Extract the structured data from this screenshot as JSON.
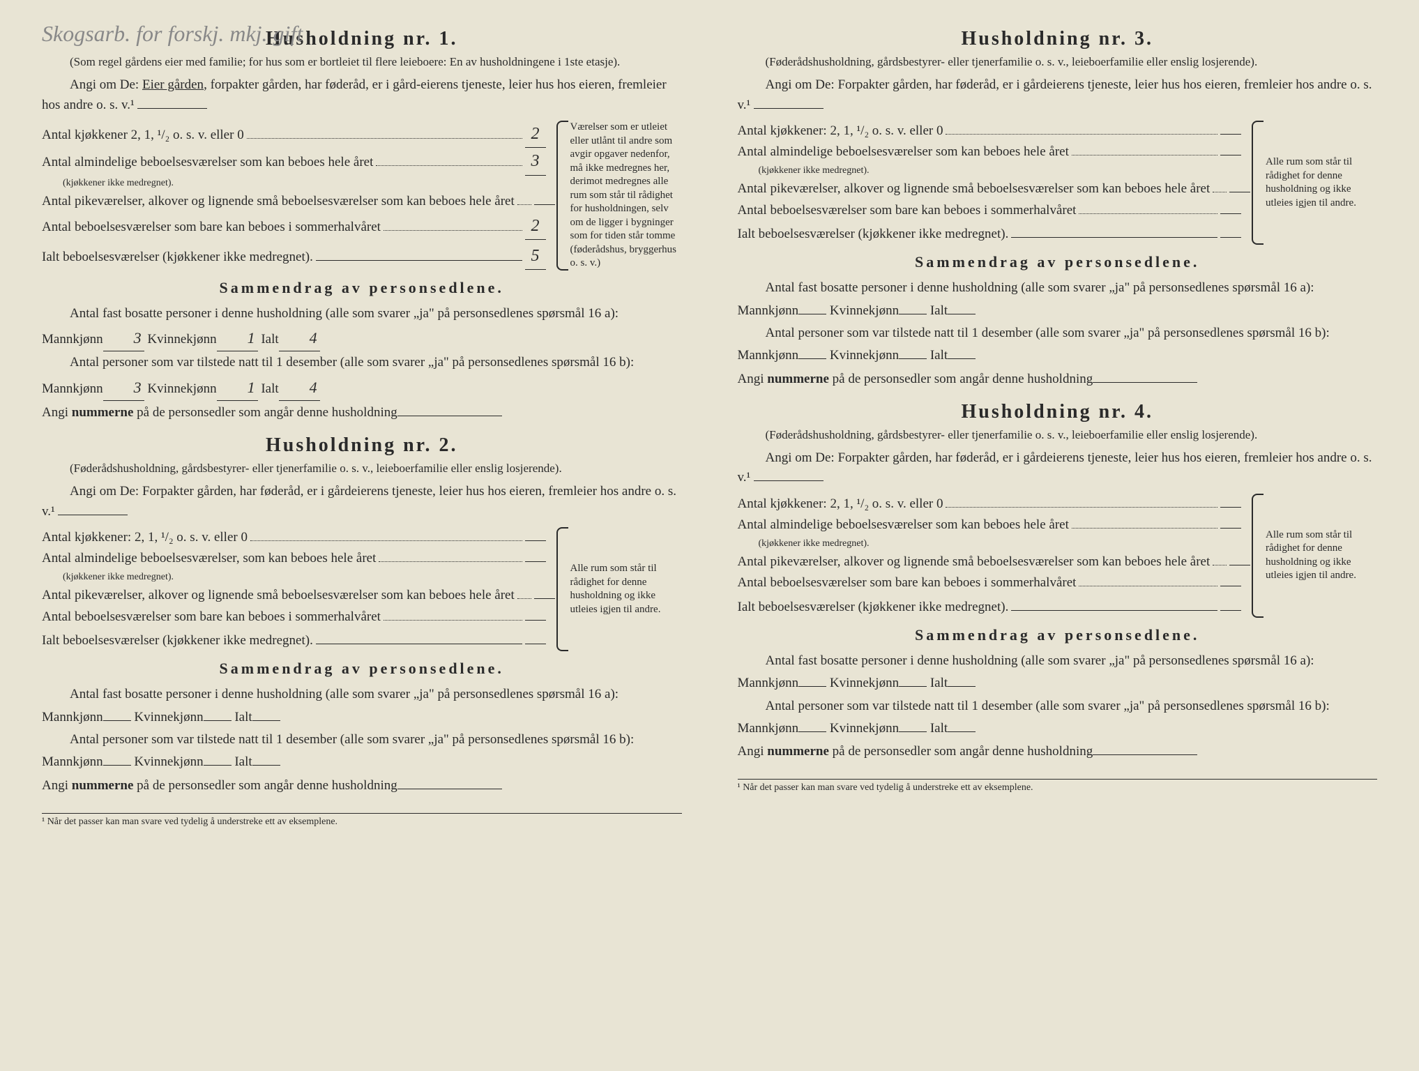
{
  "handwriting_note": "Skogsarb. for forskj. mkj. gift",
  "footnote": "¹ Når det passer kan man svare ved tydelig å understreke ett av eksemplene.",
  "households": [
    {
      "title": "Husholdning nr. 1.",
      "subtitle": "(Som regel gårdens eier med familie; for hus som er bortleiet til flere leieboere: En av husholdningene i 1ste etasje).",
      "instruction_prefix": "Angi om De: ",
      "instruction_underlined": "Eier gården",
      "instruction_suffix": ", forpakter gården, har føderåd, er i gård-eierens tjeneste, leier hus hos eieren, fremleier hos andre o. s. v.¹",
      "kitchens_label": "Antal kjøkkener 2, 1, ¹/₂ o. s. v. eller 0",
      "kitchens_value": "2",
      "rooms_year_label": "Antal almindelige beboelsesværelser som kan beboes hele året",
      "rooms_year_note": "(kjøkkener ikke medregnet).",
      "rooms_year_value": "3",
      "alcoves_label": "Antal pikeværelser, alkover og lignende små beboelsesværelser som kan beboes hele året",
      "alcoves_value": "",
      "summer_label": "Antal beboelsesværelser som bare kan beboes i sommerhalvåret",
      "summer_value": "2",
      "total_label": "Ialt beboelsesværelser (kjøkkener ikke medregnet).",
      "total_value": "5",
      "bracket_note": "Værelser som er utleiet eller utlånt til andre som avgir opgaver nedenfor, må ikke medregnes her, derimot medregnes alle rum som står til rådighet for husholdningen, selv om de ligger i bygninger som for tiden står tomme (føderådshus, bryggerhus o. s. v.)",
      "summary_title": "Sammendrag av personsedlene.",
      "fast_label": "Antal fast bosatte personer i denne husholdning (alle som svarer „ja\" på personsedlenes spørsmål 16 a): Mannkjønn",
      "fast_m": "3",
      "fast_k_label": "Kvinnekjønn",
      "fast_k": "1",
      "fast_i_label": "Ialt",
      "fast_i": "4",
      "tilstede_label": "Antal personer som var tilstede natt til 1 desember (alle som svarer „ja\" på personsedlenes spørsmål 16 b): Mannkjønn",
      "tilstede_m": "3",
      "tilstede_k": "1",
      "tilstede_i": "4",
      "nums_prefix": "Angi ",
      "nums_bold": "nummerne",
      "nums_suffix": " på de personsedler som angår denne husholdning"
    },
    {
      "title": "Husholdning nr. 2.",
      "subtitle": "(Føderådshusholdning, gårdsbestyrer- eller tjenerfamilie o. s. v., leieboerfamilie eller enslig losjerende).",
      "instruction_prefix": "Angi om De: Forpakter gården, har føderåd, er i gårdeierens tjeneste, leier hus hos eieren, fremleier hos andre o. s. v.¹",
      "instruction_underlined": "",
      "instruction_suffix": "",
      "kitchens_label": "Antal kjøkkener: 2, 1, ¹/₂ o. s. v. eller 0",
      "kitchens_value": "",
      "rooms_year_label": "Antal almindelige beboelsesværelser, som kan beboes hele året",
      "rooms_year_note": "(kjøkkener ikke medregnet).",
      "rooms_year_value": "",
      "alcoves_label": "Antal pikeværelser, alkover og lignende små beboelsesværelser som kan beboes hele året",
      "alcoves_value": "",
      "summer_label": "Antal beboelsesværelser som bare kan beboes i sommerhalvåret",
      "summer_value": "",
      "total_label": "Ialt beboelsesværelser (kjøkkener ikke medregnet).",
      "total_value": "",
      "bracket_note": "Alle rum som står til rådighet for denne husholdning og ikke utleies igjen til andre.",
      "summary_title": "Sammendrag av personsedlene.",
      "fast_label": "Antal fast bosatte personer i denne husholdning (alle som svarer „ja\" på personsedlenes spørsmål 16 a): Mannkjønn",
      "fast_m": "",
      "fast_k_label": "Kvinnekjønn",
      "fast_k": "",
      "fast_i_label": "Ialt",
      "fast_i": "",
      "tilstede_label": "Antal personer som var tilstede natt til 1 desember (alle som svarer „ja\" på personsedlenes spørsmål 16 b): Mannkjønn",
      "tilstede_m": "",
      "tilstede_k": "",
      "tilstede_i": "",
      "nums_prefix": "Angi ",
      "nums_bold": "nummerne",
      "nums_suffix": " på de personsedler som angår denne husholdning"
    },
    {
      "title": "Husholdning nr. 3.",
      "subtitle": "(Føderådshusholdning, gårdsbestyrer- eller tjenerfamilie o. s. v., leieboerfamilie eller enslig losjerende).",
      "instruction_prefix": "Angi om De: Forpakter gården, har føderåd, er i gårdeierens tjeneste, leier hus hos eieren, fremleier hos andre o. s. v.¹",
      "instruction_underlined": "",
      "instruction_suffix": "",
      "kitchens_label": "Antal kjøkkener: 2, 1, ¹/₂ o. s. v. eller 0",
      "kitchens_value": "",
      "rooms_year_label": "Antal almindelige beboelsesværelser som kan beboes hele året",
      "rooms_year_note": "(kjøkkener ikke medregnet).",
      "rooms_year_value": "",
      "alcoves_label": "Antal pikeværelser, alkover og lignende små beboelsesværelser som kan beboes hele året",
      "alcoves_value": "",
      "summer_label": "Antal beboelsesværelser som bare kan beboes i sommerhalvåret",
      "summer_value": "",
      "total_label": "Ialt beboelsesværelser (kjøkkener ikke medregnet).",
      "total_value": "",
      "bracket_note": "Alle rum som står til rådighet for denne husholdning og ikke utleies igjen til andre.",
      "summary_title": "Sammendrag av personsedlene.",
      "fast_label": "Antal fast bosatte personer i denne husholdning (alle som svarer „ja\" på personsedlenes spørsmål 16 a): Mannkjønn",
      "fast_m": "",
      "fast_k_label": "Kvinnekjønn",
      "fast_k": "",
      "fast_i_label": "Ialt",
      "fast_i": "",
      "tilstede_label": "Antal personer som var tilstede natt til 1 desember (alle som svarer „ja\" på personsedlenes spørsmål 16 b): Mannkjønn",
      "tilstede_m": "",
      "tilstede_k": "",
      "tilstede_i": "",
      "nums_prefix": "Angi ",
      "nums_bold": "nummerne",
      "nums_suffix": " på de personsedler som angår denne husholdning"
    },
    {
      "title": "Husholdning nr. 4.",
      "subtitle": "(Føderådshusholdning, gårdsbestyrer- eller tjenerfamilie o. s. v., leieboerfamilie eller enslig losjerende).",
      "instruction_prefix": "Angi om De: Forpakter gården, har føderåd, er i gårdeierens tjeneste, leier hus hos eieren, fremleier hos andre o. s. v.¹",
      "instruction_underlined": "",
      "instruction_suffix": "",
      "kitchens_label": "Antal kjøkkener: 2, 1, ¹/₂ o. s. v. eller 0",
      "kitchens_value": "",
      "rooms_year_label": "Antal almindelige beboelsesværelser som kan beboes hele året",
      "rooms_year_note": "(kjøkkener ikke medregnet).",
      "rooms_year_value": "",
      "alcoves_label": "Antal pikeværelser, alkover og lignende små beboelsesværelser som kan beboes hele året",
      "alcoves_value": "",
      "summer_label": "Antal beboelsesværelser som bare kan beboes i sommerhalvåret",
      "summer_value": "",
      "total_label": "Ialt beboelsesværelser (kjøkkener ikke medregnet).",
      "total_value": "",
      "bracket_note": "Alle rum som står til rådighet for denne husholdning og ikke utleies igjen til andre.",
      "summary_title": "Sammendrag av personsedlene.",
      "fast_label": "Antal fast bosatte personer i denne husholdning (alle som svarer „ja\" på personsedlenes spørsmål 16 a): Mannkjønn",
      "fast_m": "",
      "fast_k_label": "Kvinnekjønn",
      "fast_k": "",
      "fast_i_label": "Ialt",
      "fast_i": "",
      "tilstede_label": "Antal personer som var tilstede natt til 1 desember (alle som svarer „ja\" på personsedlenes spørsmål 16 b): Mannkjønn",
      "tilstede_m": "",
      "tilstede_k": "",
      "tilstede_i": "",
      "nums_prefix": "Angi ",
      "nums_bold": "nummerne",
      "nums_suffix": " på de personsedler som angår denne husholdning"
    }
  ]
}
